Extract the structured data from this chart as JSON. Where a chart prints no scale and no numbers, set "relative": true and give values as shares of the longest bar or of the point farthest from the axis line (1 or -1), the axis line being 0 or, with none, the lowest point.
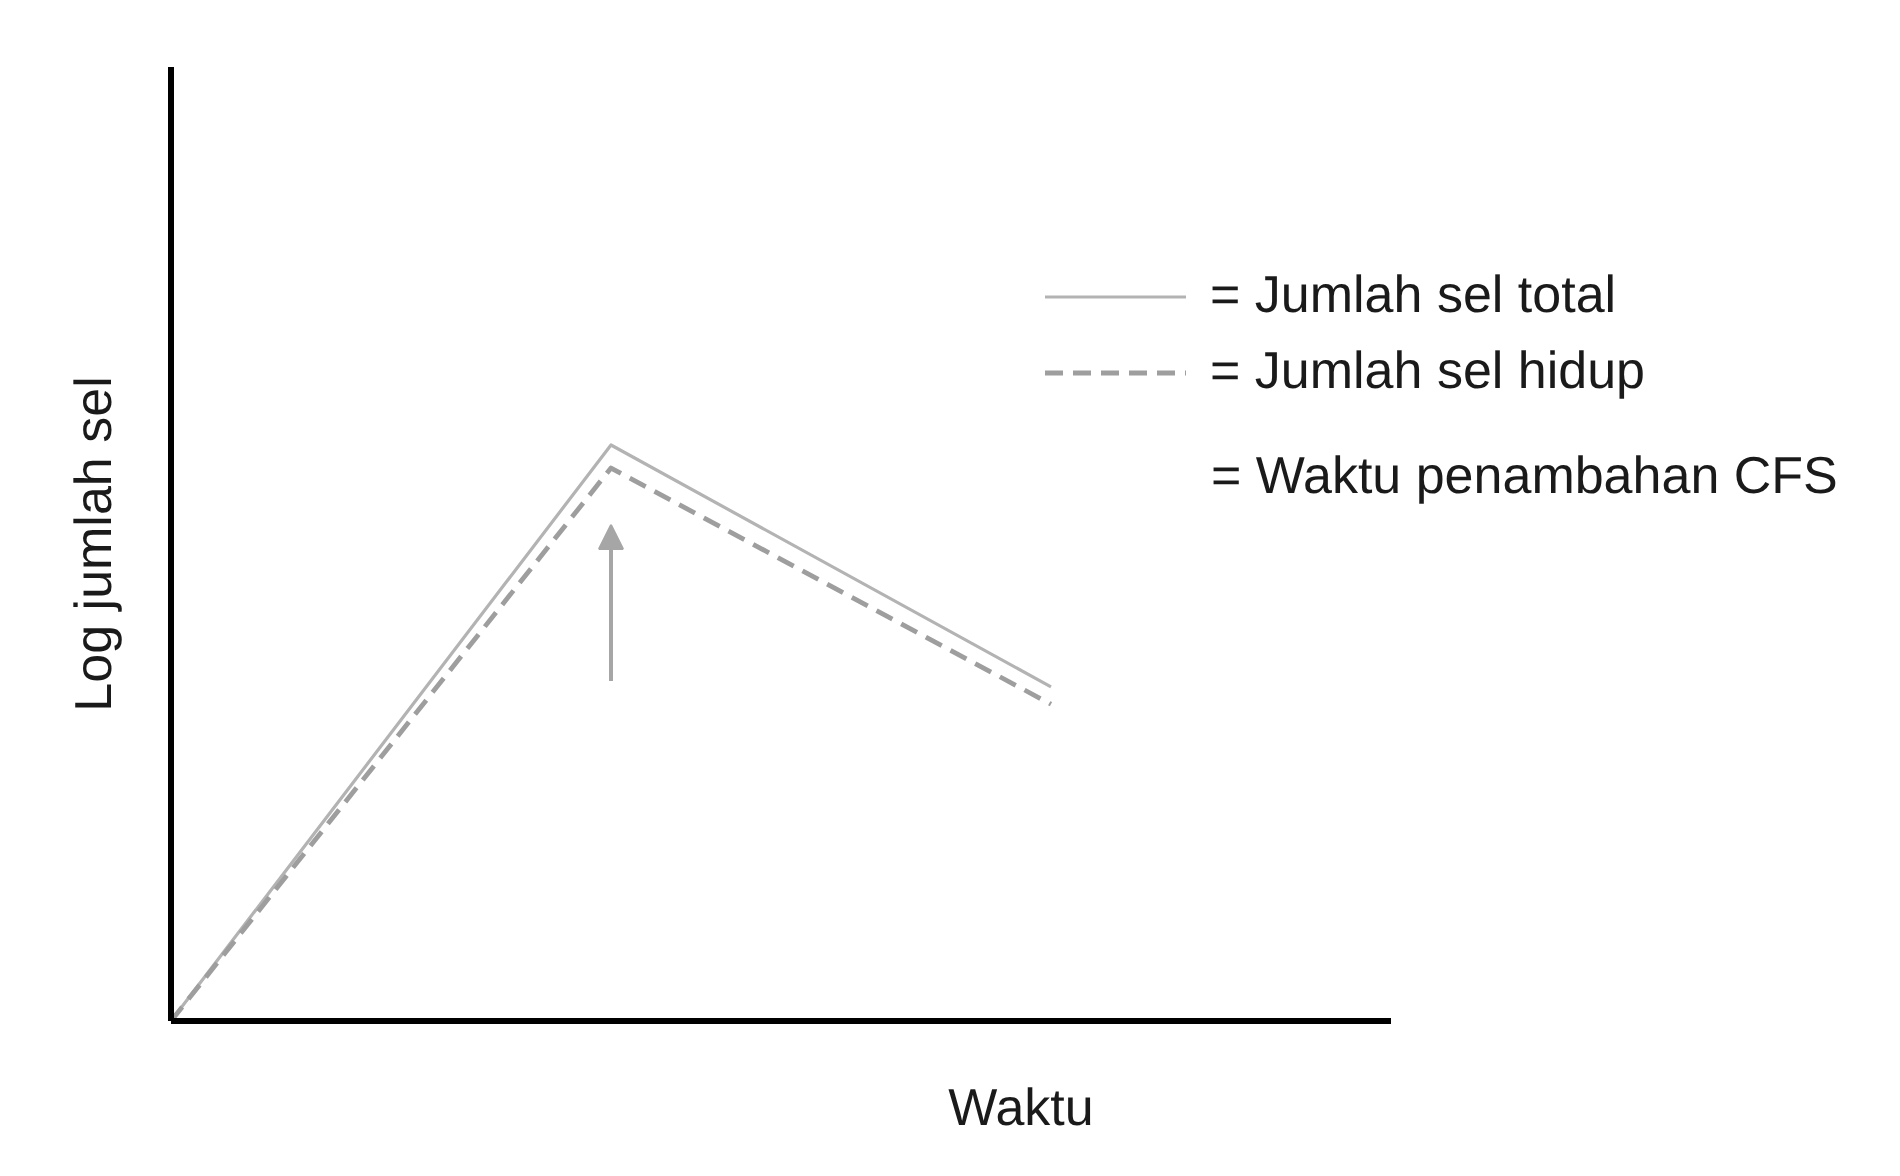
{
  "chart_data": {
    "type": "line",
    "xlabel": "Waktu",
    "ylabel": "Log jumlah sel",
    "categories": [
      null,
      null,
      null
    ],
    "relative": true,
    "series": [
      {
        "name": "= Jumlah sel total",
        "color": "#b3b3b3",
        "values": [
          0,
          1,
          0.58
        ],
        "line_style": "solid"
      },
      {
        "name": "= Jumlah sel hidup",
        "color": "#9e9e9e",
        "values": [
          0,
          0.96,
          0.55
        ],
        "line_style": "dashed"
      }
    ],
    "legend": "top right",
    "grid": false,
    "annotations": [
      "= Waktu penambahan CFS"
    ]
  }
}
